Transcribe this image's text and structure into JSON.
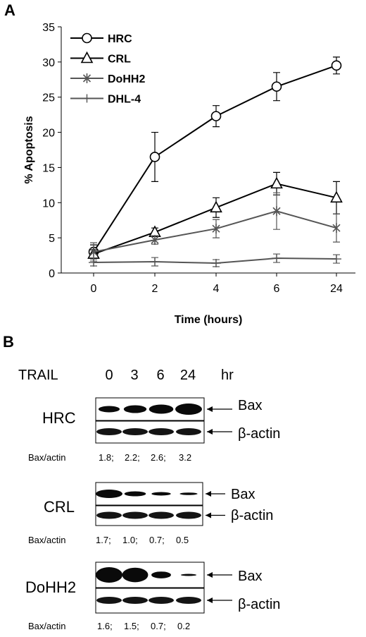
{
  "panel_a_label": "A",
  "panel_b_label": "B",
  "chart_data": {
    "type": "line",
    "categories": [
      "0",
      "2",
      "4",
      "6",
      "24"
    ],
    "xlabel": "Time (hours)",
    "ylabel": "% Apoptosis",
    "ylim": [
      0,
      35
    ],
    "yticks": [
      0,
      5,
      10,
      15,
      20,
      25,
      30,
      35
    ],
    "legend_position": "top-left",
    "grid": false,
    "series": [
      {
        "name": "HRC",
        "marker": "circle",
        "color": "#000000",
        "values": [
          3.0,
          16.5,
          22.3,
          26.5,
          29.5
        ],
        "errors": [
          1.0,
          3.5,
          1.5,
          2.0,
          1.2
        ]
      },
      {
        "name": "CRL",
        "marker": "triangle",
        "color": "#000000",
        "values": [
          2.7,
          5.8,
          9.3,
          12.7,
          10.7
        ],
        "errors": [
          0.6,
          0.6,
          1.4,
          1.6,
          2.3
        ]
      },
      {
        "name": "DoHH2",
        "marker": "asterisk",
        "color": "#555555",
        "values": [
          3.0,
          4.7,
          6.3,
          8.8,
          6.4
        ],
        "errors": [
          1.3,
          0.6,
          1.3,
          2.6,
          2.0
        ]
      },
      {
        "name": "DHL-4",
        "marker": "plus",
        "color": "#555555",
        "values": [
          1.5,
          1.6,
          1.4,
          2.1,
          2.0
        ],
        "errors": [
          0.5,
          0.6,
          0.5,
          0.6,
          0.6
        ]
      }
    ]
  },
  "blots": {
    "treatment_label": "TRAIL",
    "lanes": [
      "0",
      "3",
      "6",
      "24"
    ],
    "unit": "hr",
    "ratio_label": "Bax/actin",
    "panels": [
      {
        "cell": "HRC",
        "bands": [
          "Bax",
          "β-actin"
        ],
        "ratios": [
          "1.8;",
          "2.2;",
          "2.6;",
          "3.2"
        ],
        "bax_intensity": [
          1.8,
          2.2,
          2.6,
          3.2
        ]
      },
      {
        "cell": "CRL",
        "bands": [
          "Bax",
          "β-actin"
        ],
        "ratios": [
          "1.7;",
          "1.0;",
          "0.7;",
          "0.5"
        ],
        "bax_intensity": [
          1.7,
          1.0,
          0.7,
          0.5
        ]
      },
      {
        "cell": "DoHH2",
        "bands": [
          "Bax",
          "β-actin"
        ],
        "ratios": [
          "1.6;",
          "1.5;",
          "0.7;",
          "0.2"
        ],
        "bax_intensity": [
          1.6,
          1.5,
          0.7,
          0.2
        ]
      }
    ]
  }
}
